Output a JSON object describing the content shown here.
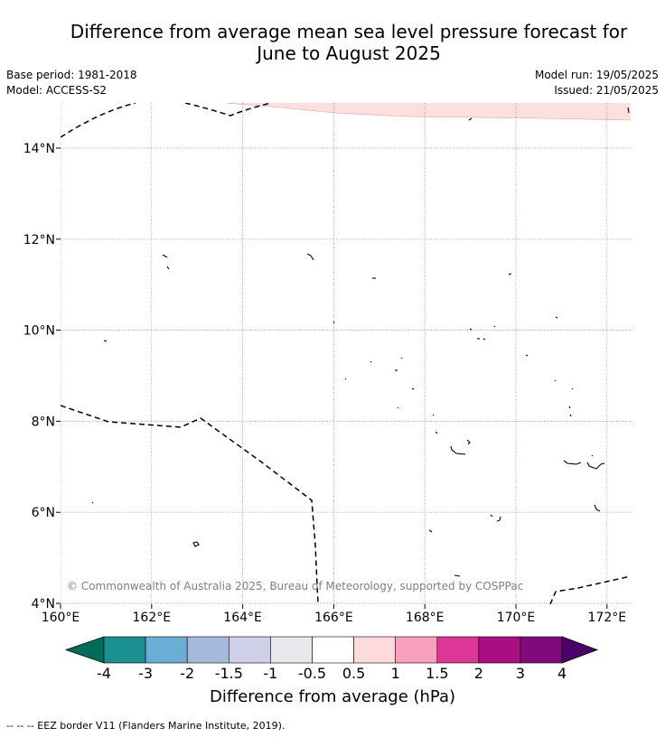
{
  "title_line1": "Difference from average mean sea level pressure forecast for",
  "title_line2": "June to August 2025",
  "base_period": "Base period: 1981-2018",
  "model": "Model: ACCESS-S2",
  "model_run": "Model run: 19/05/2025",
  "issued": "Issued: 21/05/2025",
  "copyright": "© Commonwealth of Australia 2025, Bureau of Meteorology, supported by COSPPac",
  "lat_ticks": [
    "4°N",
    "6°N",
    "8°N",
    "10°N",
    "12°N",
    "14°N"
  ],
  "lon_ticks": [
    "160°E",
    "162°E",
    "164°E",
    "166°E",
    "168°E",
    "170°E",
    "172°E"
  ],
  "colorbar": {
    "title": "Difference from average (hPa)",
    "labels": [
      "-4",
      "-3",
      "-2",
      "-1.5",
      "-1",
      "-0.5",
      "0.5",
      "1",
      "1.5",
      "2",
      "3",
      "4"
    ],
    "colors": [
      "#1a9090",
      "#6aaed6",
      "#a6b9dc",
      "#cfd0e8",
      "#e9e8ee",
      "#ffffff",
      "#fddbdd",
      "#f7a1bd",
      "#dd3697",
      "#a90f80",
      "#7f0a7c"
    ],
    "under_color": "#006d5a",
    "over_color": "#4d0068"
  },
  "shaded_region_color": "#fde0dd",
  "source_note": "--  --  -- EEZ border V11 (Flanders Marine Institute, 2019)."
}
